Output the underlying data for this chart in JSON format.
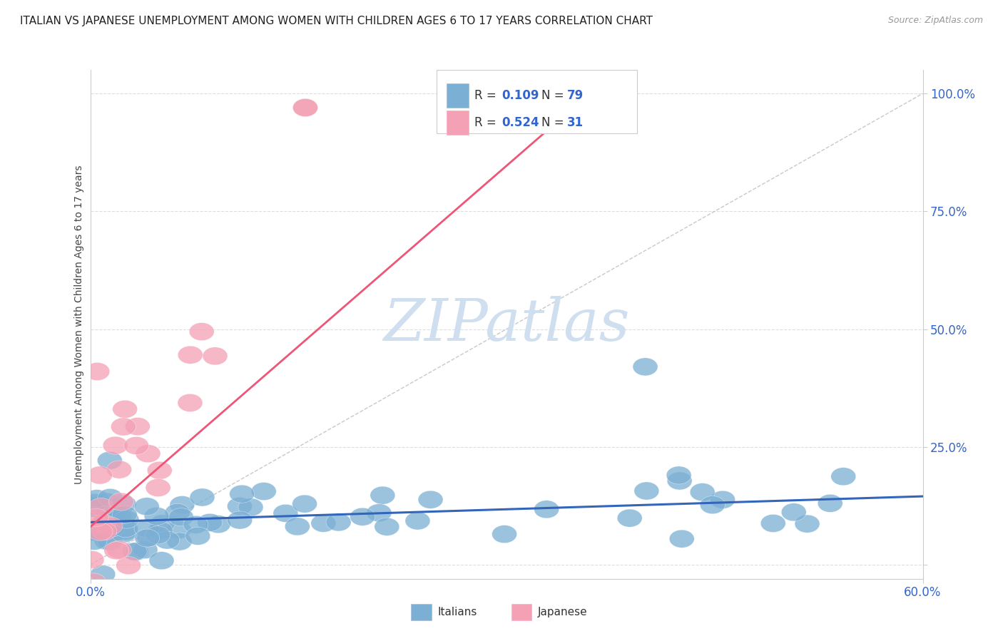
{
  "title": "ITALIAN VS JAPANESE UNEMPLOYMENT AMONG WOMEN WITH CHILDREN AGES 6 TO 17 YEARS CORRELATION CHART",
  "source": "Source: ZipAtlas.com",
  "ylabel": "Unemployment Among Women with Children Ages 6 to 17 years",
  "xlim": [
    0.0,
    0.6
  ],
  "ylim": [
    -0.03,
    1.05
  ],
  "blue_color": "#7BAFD4",
  "pink_color": "#F4A0B5",
  "line_blue": "#3366BB",
  "line_pink": "#EE5577",
  "line_gray": "#BBBBBB",
  "r_value_color": "#3366CC",
  "label_color": "#3366CC",
  "grid_color": "#DDDDDD",
  "title_color": "#222222",
  "source_color": "#999999",
  "watermark_color": "#D0DFF0",
  "legend_edge_color": "#CCCCCC"
}
